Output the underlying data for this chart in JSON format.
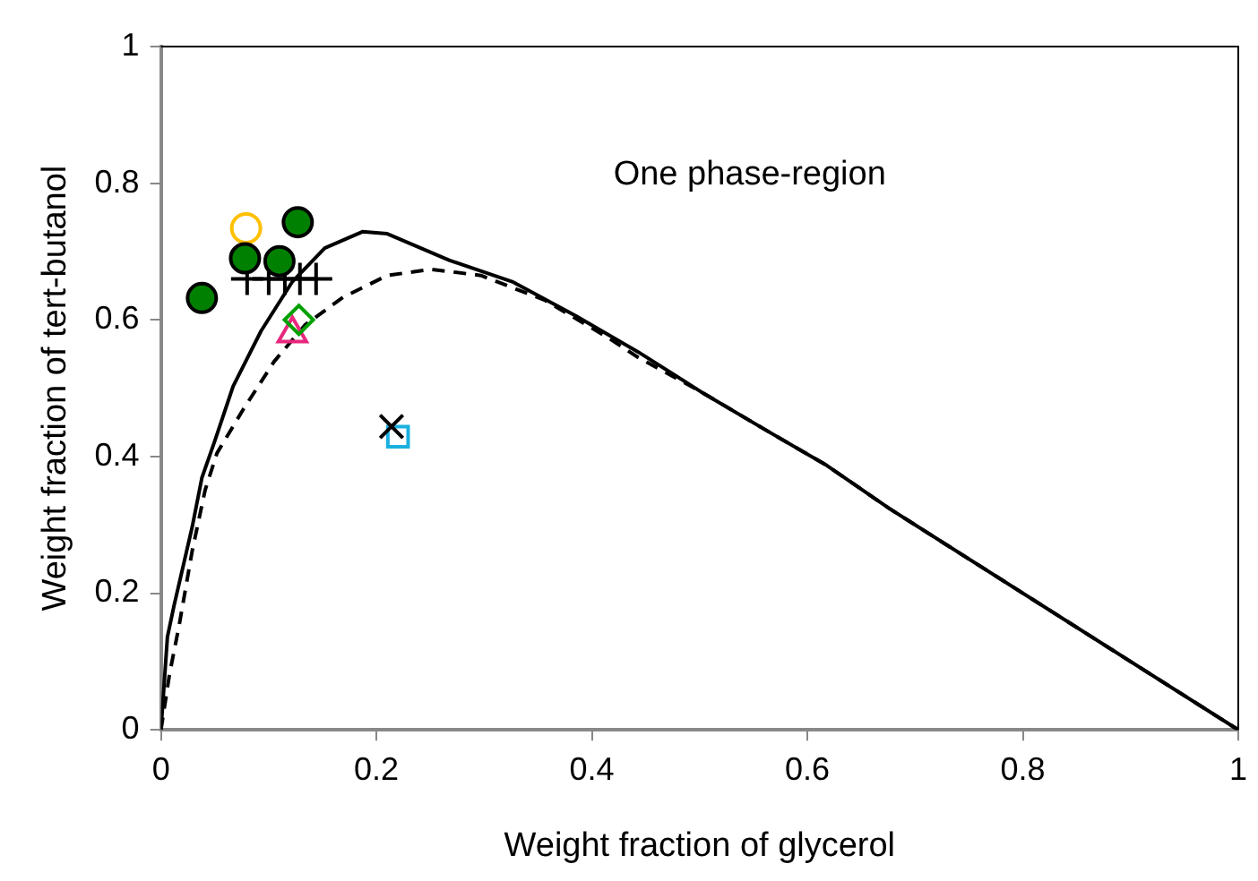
{
  "chart_data": {
    "type": "scatter",
    "xlabel": "Weight fraction of glycerol",
    "ylabel": "Weight fraction of tert-butanol",
    "xlim": [
      0,
      1
    ],
    "ylim": [
      0,
      1
    ],
    "xticks": [
      0,
      0.2,
      0.4,
      0.6,
      0.8,
      1
    ],
    "yticks": [
      0,
      0.2,
      0.4,
      0.6,
      0.8,
      1
    ],
    "grid": false,
    "legend": false,
    "annotations": [
      "One phase-region"
    ],
    "series": [
      {
        "type": "line",
        "color": "#000000",
        "line_style": "solid",
        "marker": "none",
        "x": [
          0,
          0.006,
          0.012,
          0.029,
          0.038,
          0.05,
          0.067,
          0.093,
          0.122,
          0.152,
          0.187,
          0.21,
          0.268,
          0.326,
          0.385,
          0.443,
          0.501,
          0.559,
          0.618,
          0.676,
          1
        ],
        "values": [
          0,
          0.136,
          0.181,
          0.297,
          0.369,
          0.423,
          0.503,
          0.584,
          0.656,
          0.705,
          0.729,
          0.726,
          0.687,
          0.656,
          0.606,
          0.553,
          0.495,
          0.441,
          0.387,
          0.324,
          0
        ]
      },
      {
        "type": "line",
        "color": "#000000",
        "line_style": "dashed",
        "marker": "none",
        "x": [
          0,
          0.008,
          0.017,
          0.029,
          0.041,
          0.052,
          0.076,
          0.105,
          0.134,
          0.169,
          0.21,
          0.251,
          0.297,
          0.356,
          0.414,
          0.443,
          0.501,
          0.559,
          0.618,
          0.676,
          1
        ],
        "values": [
          0,
          0.082,
          0.154,
          0.262,
          0.351,
          0.405,
          0.468,
          0.539,
          0.593,
          0.633,
          0.665,
          0.674,
          0.665,
          0.629,
          0.575,
          0.545,
          0.495,
          0.441,
          0.387,
          0.324,
          0
        ]
      },
      {
        "color": "#008000",
        "marker": "circle",
        "x": [
          0.038,
          0.078,
          0.11,
          0.127
        ],
        "values": [
          0.632,
          0.69,
          0.686,
          0.743
        ]
      },
      {
        "color": "#ffc000",
        "marker": "circle",
        "x": [
          0.079
        ],
        "values": [
          0.734
        ]
      },
      {
        "color": "#000000",
        "marker": "cross",
        "x": [
          0.08,
          0.1,
          0.115,
          0.129,
          0.144
        ],
        "values": [
          0.66,
          0.66,
          0.66,
          0.66,
          0.66
        ]
      },
      {
        "color": "#00a000",
        "marker": "diamond",
        "x": [
          0.128
        ],
        "values": [
          0.6
        ]
      },
      {
        "color": "#e8287d",
        "marker": "triangle",
        "x": [
          0.122
        ],
        "values": [
          0.58
        ]
      },
      {
        "color": "#000000",
        "marker": "x",
        "x": [
          0.214
        ],
        "values": [
          0.444
        ]
      },
      {
        "color": "#1ab0e0",
        "marker": "square",
        "x": [
          0.22
        ],
        "values": [
          0.429
        ]
      }
    ]
  }
}
